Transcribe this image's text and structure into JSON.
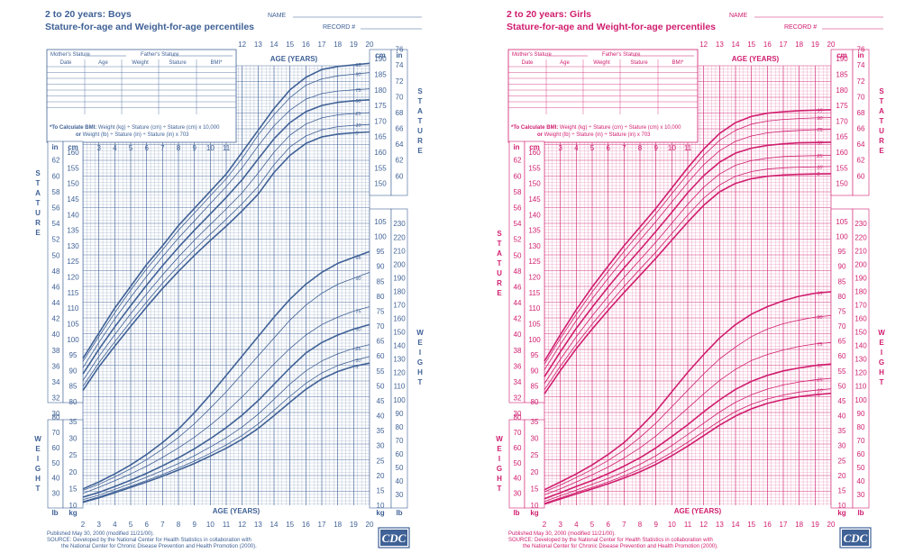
{
  "colors": {
    "boys": "#3f6196",
    "girls": "#d01d6e"
  },
  "panels": [
    {
      "id": "boys",
      "title_line1": "2 to 20 years: Boys",
      "title_line2": "Stature-for-age and Weight-for-age percentiles",
      "name_label": "NAME",
      "record_label": "RECORD #",
      "parents_row": [
        "Mother's Stature",
        "Father's Stature"
      ],
      "table_headers": [
        "Date",
        "Age",
        "Weight",
        "Stature",
        "BMI*"
      ],
      "bmi_note_bold": "*To Calculate BMI:",
      "bmi_note_line1": " Weight (kg) ÷ Stature (cm) ÷ Stature (cm) x 10,000",
      "bmi_note_line2_bold": "or",
      "bmi_note_line2": " Weight (lb) ÷ Stature (in) ÷ Stature (in) x 703",
      "age_label": "AGE (YEARS)",
      "stature_word": "STATURE",
      "weight_word": "WEIGHT",
      "unit_in": "in",
      "unit_cm": "cm",
      "unit_lb": "lb",
      "unit_kg": "kg",
      "published": "Published May 30, 2000 (modified 11/21/00).",
      "source_line1": "SOURCE: Developed by the National Center for Health Statistics in collaboration with",
      "source_line2": "the National Center for Chronic Disease Prevention and Health Promotion (2000).",
      "logo_text": "CDC"
    },
    {
      "id": "girls",
      "title_line1": "2 to 20 years: Girls",
      "title_line2": "Stature-for-age and Weight-for-age percentiles",
      "name_label": "NAME",
      "record_label": "RECORD #",
      "parents_row": [
        "Mother's Stature",
        "Father's Stature"
      ],
      "table_headers": [
        "Date",
        "Age",
        "Weight",
        "Stature",
        "BMI*"
      ],
      "bmi_note_bold": "*To Calculate BMI:",
      "bmi_note_line1": " Weight (kg) ÷ Stature (cm) ÷ Stature (cm) x 10,000",
      "bmi_note_line2_bold": "or",
      "bmi_note_line2": " Weight (lb) ÷ Stature (in) ÷ Stature (in) x 703",
      "age_label": "AGE (YEARS)",
      "stature_word": "STATURE",
      "weight_word": "WEIGHT",
      "unit_in": "in",
      "unit_cm": "cm",
      "unit_lb": "lb",
      "unit_kg": "kg",
      "published": "Published May 30, 2000 (modified 11/21/00).",
      "source_line1": "SOURCE: Developed by the National Center for Health Statistics in collaboration with",
      "source_line2": "the National Center for Chronic Disease Prevention and Health Promotion (2000).",
      "logo_text": "CDC"
    }
  ],
  "chart_data": [
    {
      "type": "line",
      "title": "2 to 20 years: Boys Stature-for-age and Weight-for-age percentiles",
      "xlabel": "AGE (YEARS)",
      "xlim": [
        2,
        20
      ],
      "x": [
        2,
        3,
        4,
        5,
        6,
        7,
        8,
        9,
        10,
        11,
        12,
        13,
        14,
        15,
        16,
        17,
        18,
        19,
        20
      ],
      "age_ticks_top": [
        12,
        13,
        14,
        15,
        16,
        17,
        18,
        19,
        20
      ],
      "age_ticks_mid": [
        3,
        4,
        5,
        6,
        7,
        8,
        9,
        10,
        11
      ],
      "age_ticks_bottom": [
        2,
        3,
        4,
        5,
        6,
        7,
        8,
        9,
        10,
        11,
        12,
        13,
        14,
        15,
        16,
        17,
        18,
        19,
        20
      ],
      "stature_cm_range": [
        80,
        190
      ],
      "weight_kg_range": [
        10,
        105
      ],
      "stature_cm_ticks_left": [
        80,
        85,
        90,
        95,
        100,
        105,
        110,
        115,
        120,
        125,
        130,
        135,
        140,
        145,
        150,
        155,
        160
      ],
      "stature_in_ticks_left": [
        30,
        32,
        34,
        36,
        38,
        40,
        42,
        44,
        46,
        48,
        50,
        52,
        54,
        56,
        58,
        60,
        62
      ],
      "stature_cm_ticks_right": [
        150,
        155,
        160,
        165,
        170,
        175,
        180,
        185,
        190
      ],
      "stature_in_ticks_right": [
        60,
        62,
        64,
        66,
        68,
        70,
        72,
        74,
        76
      ],
      "weight_kg_ticks_left": [
        10,
        15,
        20,
        25,
        30,
        35
      ],
      "weight_lb_ticks_left": [
        30,
        40,
        50,
        60,
        70,
        80
      ],
      "weight_kg_ticks_right": [
        10,
        15,
        20,
        25,
        30,
        35,
        40,
        45,
        50,
        55,
        60,
        65,
        70,
        75,
        80,
        85,
        90,
        95,
        100,
        105
      ],
      "weight_lb_ticks_right": [
        30,
        40,
        50,
        60,
        70,
        80,
        90,
        100,
        110,
        120,
        130,
        140,
        150,
        160,
        170,
        180,
        190,
        200,
        210,
        220,
        230
      ],
      "stature_series": [
        {
          "name": "95",
          "values": [
            93.9,
            102.0,
            110.0,
            117.0,
            124.0,
            130.0,
            136.5,
            142.0,
            147.5,
            153.0,
            160.0,
            167.0,
            174.0,
            180.0,
            184.0,
            186.5,
            187.5,
            188.0,
            188.5
          ]
        },
        {
          "name": "90",
          "values": [
            92.9,
            100.9,
            108.5,
            115.8,
            122.6,
            128.7,
            135.0,
            140.5,
            146.0,
            151.5,
            158.0,
            165.5,
            172.0,
            177.5,
            181.5,
            183.5,
            184.5,
            185.0,
            185.5
          ]
        },
        {
          "name": "75",
          "values": [
            90.9,
            99.0,
            106.5,
            113.5,
            120.2,
            126.5,
            132.5,
            138.0,
            143.5,
            149.0,
            155.0,
            162.0,
            168.5,
            173.5,
            177.0,
            178.8,
            179.6,
            180.0,
            180.3
          ]
        },
        {
          "name": "50",
          "values": [
            88.9,
            96.8,
            104.0,
            110.8,
            117.4,
            123.6,
            129.5,
            135.0,
            140.2,
            145.5,
            151.2,
            157.8,
            164.3,
            169.5,
            173.0,
            175.0,
            176.0,
            176.5,
            176.8
          ]
        },
        {
          "name": "25",
          "values": [
            86.8,
            94.5,
            101.5,
            108.2,
            114.6,
            120.6,
            126.4,
            131.8,
            136.8,
            141.8,
            147.0,
            153.3,
            160.0,
            165.5,
            169.0,
            171.0,
            172.0,
            172.4,
            172.7
          ]
        },
        {
          "name": "10",
          "values": [
            84.9,
            92.5,
            99.2,
            105.7,
            112.0,
            118.0,
            123.6,
            128.8,
            133.7,
            138.5,
            143.5,
            149.0,
            156.0,
            161.7,
            165.2,
            167.2,
            168.2,
            168.6,
            168.9
          ]
        },
        {
          "name": "5",
          "values": [
            83.6,
            91.2,
            97.8,
            104.2,
            110.4,
            116.3,
            121.8,
            126.9,
            131.7,
            136.3,
            141.2,
            146.5,
            153.5,
            159.0,
            162.8,
            164.9,
            165.8,
            166.2,
            166.5
          ]
        }
      ],
      "weight_series": [
        {
          "name": "95",
          "values": [
            15.5,
            17.8,
            20.5,
            23.5,
            27.0,
            31.0,
            35.5,
            41.0,
            47.0,
            53.5,
            60.0,
            66.5,
            73.0,
            79.0,
            84.0,
            88.0,
            91.0,
            93.0,
            95.0
          ]
        },
        {
          "name": "90",
          "values": [
            15.0,
            17.0,
            19.5,
            22.2,
            25.3,
            28.8,
            32.7,
            37.3,
            42.5,
            48.0,
            54.0,
            60.0,
            66.0,
            72.0,
            77.0,
            81.0,
            84.0,
            86.0,
            88.0
          ]
        },
        {
          "name": "75",
          "values": [
            14.0,
            16.0,
            18.2,
            20.5,
            23.1,
            26.0,
            29.2,
            32.8,
            36.8,
            41.3,
            46.3,
            51.8,
            57.3,
            62.5,
            67.0,
            70.5,
            73.0,
            75.0,
            76.5
          ]
        },
        {
          "name": "50",
          "values": [
            12.7,
            14.3,
            16.3,
            18.4,
            20.7,
            23.2,
            25.9,
            28.9,
            32.3,
            36.0,
            40.2,
            45.0,
            50.5,
            56.0,
            61.0,
            64.5,
            67.0,
            69.0,
            70.5
          ]
        },
        {
          "name": "25",
          "values": [
            11.9,
            13.4,
            15.3,
            17.3,
            19.4,
            21.6,
            24.0,
            26.6,
            29.5,
            32.6,
            36.2,
            40.5,
            45.5,
            50.6,
            55.0,
            58.3,
            60.7,
            62.5,
            63.8
          ]
        },
        {
          "name": "10",
          "values": [
            11.3,
            12.8,
            14.6,
            16.4,
            18.3,
            20.3,
            22.5,
            24.8,
            27.4,
            30.2,
            33.4,
            37.2,
            41.8,
            46.5,
            50.8,
            54.3,
            56.8,
            58.5,
            59.8
          ]
        },
        {
          "name": "5",
          "values": [
            11.0,
            12.5,
            14.2,
            16.0,
            17.8,
            19.7,
            21.8,
            24.0,
            26.5,
            29.1,
            32.1,
            35.7,
            40.0,
            44.5,
            48.8,
            52.3,
            54.8,
            56.5,
            57.6
          ]
        }
      ]
    },
    {
      "type": "line",
      "title": "2 to 20 years: Girls Stature-for-age and Weight-for-age percentiles",
      "xlabel": "AGE (YEARS)",
      "xlim": [
        2,
        20
      ],
      "x": [
        2,
        3,
        4,
        5,
        6,
        7,
        8,
        9,
        10,
        11,
        12,
        13,
        14,
        15,
        16,
        17,
        18,
        19,
        20
      ],
      "age_ticks_top": [
        12,
        13,
        14,
        15,
        16,
        17,
        18,
        19,
        20
      ],
      "age_ticks_mid": [
        3,
        4,
        5,
        6,
        7,
        8,
        9,
        10,
        11
      ],
      "age_ticks_bottom": [
        2,
        3,
        4,
        5,
        6,
        7,
        8,
        9,
        10,
        11,
        12,
        13,
        14,
        15,
        16,
        17,
        18,
        19,
        20
      ],
      "stature_cm_range": [
        80,
        190
      ],
      "weight_kg_range": [
        10,
        105
      ],
      "stature_cm_ticks_left": [
        80,
        85,
        90,
        95,
        100,
        105,
        110,
        115,
        120,
        125,
        130,
        135,
        140,
        145,
        150,
        155,
        160
      ],
      "stature_in_ticks_left": [
        30,
        32,
        34,
        36,
        38,
        40,
        42,
        44,
        46,
        48,
        50,
        52,
        54,
        56,
        58,
        60,
        62
      ],
      "stature_cm_ticks_right": [
        150,
        155,
        160,
        165,
        170,
        175,
        180,
        185,
        190
      ],
      "stature_in_ticks_right": [
        60,
        62,
        64,
        66,
        68,
        70,
        72,
        74,
        76
      ],
      "weight_kg_ticks_left": [
        10,
        15,
        20,
        25,
        30,
        35
      ],
      "weight_lb_ticks_left": [
        30,
        40,
        50,
        60,
        70,
        80
      ],
      "weight_kg_ticks_right": [
        10,
        15,
        20,
        25,
        30,
        35,
        40,
        45,
        50,
        55,
        60,
        65,
        70,
        75,
        80,
        85,
        90,
        95,
        100,
        105
      ],
      "weight_lb_ticks_right": [
        30,
        40,
        50,
        60,
        70,
        80,
        90,
        100,
        110,
        120,
        130,
        140,
        150,
        160,
        170,
        180,
        190,
        200,
        210,
        220,
        230
      ],
      "stature_series": [
        {
          "name": "95",
          "values": [
            93.0,
            101.5,
            109.5,
            116.8,
            123.5,
            130.0,
            136.0,
            142.0,
            148.5,
            155.0,
            161.0,
            166.0,
            169.5,
            171.5,
            172.5,
            173.0,
            173.3,
            173.5,
            173.6
          ]
        },
        {
          "name": "90",
          "values": [
            92.0,
            100.3,
            108.0,
            115.2,
            121.8,
            128.2,
            134.3,
            140.3,
            146.7,
            153.0,
            159.0,
            163.8,
            167.0,
            169.0,
            170.0,
            170.5,
            170.8,
            171.0,
            171.1
          ]
        },
        {
          "name": "75",
          "values": [
            90.2,
            98.4,
            106.0,
            113.0,
            119.6,
            125.8,
            131.8,
            137.8,
            144.0,
            150.3,
            156.0,
            160.5,
            163.5,
            165.2,
            166.2,
            166.7,
            167.0,
            167.2,
            167.3
          ]
        },
        {
          "name": "50",
          "values": [
            88.0,
            96.0,
            103.5,
            110.3,
            116.8,
            122.9,
            128.7,
            134.6,
            140.7,
            147.0,
            152.5,
            156.8,
            159.7,
            161.3,
            162.2,
            162.7,
            163.0,
            163.1,
            163.2
          ]
        },
        {
          "name": "25",
          "values": [
            85.8,
            93.6,
            100.8,
            107.5,
            113.8,
            119.8,
            125.5,
            131.2,
            137.2,
            143.3,
            148.8,
            153.0,
            155.8,
            157.3,
            158.1,
            158.6,
            158.8,
            158.9,
            159.0
          ]
        },
        {
          "name": "10",
          "values": [
            83.8,
            91.4,
            98.4,
            104.9,
            111.0,
            116.9,
            122.5,
            128.0,
            133.9,
            139.8,
            145.3,
            149.5,
            152.3,
            153.8,
            154.6,
            155.0,
            155.2,
            155.3,
            155.4
          ]
        },
        {
          "name": "5",
          "values": [
            82.5,
            90.0,
            97.0,
            103.3,
            109.3,
            115.0,
            120.5,
            126.0,
            131.8,
            137.6,
            143.0,
            147.3,
            150.0,
            151.5,
            152.3,
            152.7,
            152.9,
            153.0,
            153.1
          ]
        }
      ],
      "weight_series": [
        {
          "name": "95",
          "values": [
            15.2,
            17.8,
            20.5,
            23.5,
            27.0,
            31.0,
            36.0,
            41.5,
            48.0,
            54.5,
            60.5,
            66.0,
            70.5,
            74.0,
            76.5,
            78.5,
            80.0,
            81.0,
            81.5
          ]
        },
        {
          "name": "90",
          "values": [
            14.5,
            16.8,
            19.3,
            22.0,
            25.0,
            28.5,
            32.7,
            37.5,
            43.0,
            48.5,
            54.0,
            59.0,
            63.0,
            66.5,
            69.0,
            70.8,
            72.0,
            73.0,
            73.5
          ]
        },
        {
          "name": "75",
          "values": [
            13.5,
            15.5,
            17.8,
            20.2,
            22.8,
            25.8,
            29.2,
            33.2,
            37.8,
            42.5,
            47.3,
            51.8,
            55.5,
            58.5,
            60.5,
            62.0,
            63.2,
            64.0,
            64.5
          ]
        },
        {
          "name": "50",
          "values": [
            12.2,
            14.2,
            16.3,
            18.3,
            20.6,
            23.1,
            25.9,
            29.2,
            33.0,
            37.0,
            41.3,
            45.3,
            48.8,
            51.5,
            53.5,
            55.0,
            56.0,
            56.8,
            57.3
          ]
        },
        {
          "name": "25",
          "values": [
            11.3,
            13.2,
            15.1,
            17.0,
            19.0,
            21.2,
            23.7,
            26.6,
            30.0,
            33.7,
            37.5,
            41.2,
            44.5,
            47.0,
            48.9,
            50.3,
            51.3,
            52.0,
            52.5
          ]
        },
        {
          "name": "10",
          "values": [
            10.7,
            12.5,
            14.3,
            16.0,
            17.8,
            19.8,
            22.1,
            24.7,
            27.7,
            31.1,
            34.7,
            38.2,
            41.4,
            43.8,
            45.6,
            46.9,
            47.9,
            48.5,
            49.0
          ]
        },
        {
          "name": "5",
          "values": [
            10.4,
            12.1,
            13.8,
            15.5,
            17.2,
            19.1,
            21.2,
            23.7,
            26.6,
            29.8,
            33.3,
            36.8,
            39.9,
            42.3,
            44.1,
            45.4,
            46.4,
            47.0,
            47.5
          ]
        }
      ]
    }
  ]
}
